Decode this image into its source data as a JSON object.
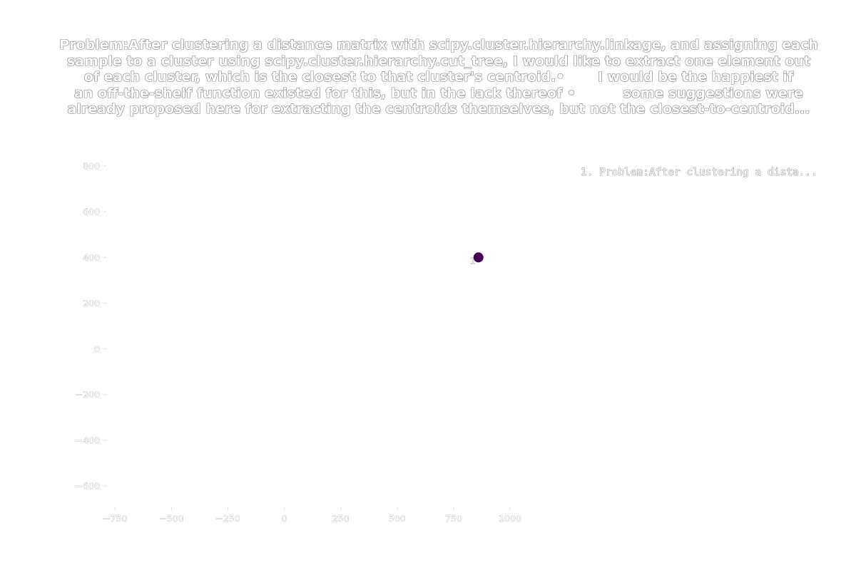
{
  "chart_data": {
    "type": "scatter",
    "title": "Problem:After clustering a distance matrix with scipy.cluster.hierarchy.linkage, and assigning each sample to a cluster using scipy.cluster.hierarchy.cut_tree, I would like to extract one element out of each cluster, which is the closest to that cluster's centroid.• I would be the happiest if an off-the-shelf function existed for this, but in the lack thereof • some suggestions were already proposed here for extracting the centroids themselves, but not the closest-to-centroid...",
    "title_lines": [
      "Problem:After clustering a distance matrix with scipy.cluster.hierarchy.linkage, and assigning each",
      "sample to a cluster using scipy.cluster.hierarchy.cut_tree, I would like to extract one element out",
      "of each cluster, which is the closest to that cluster's centroid.•       I would be the happiest if",
      "an off-the-shelf function existed for this, but in the lack thereof •          some suggestions were",
      "already proposed here for extracting the centroids themselves, but not the closest-to-centroid..."
    ],
    "xlabel": "",
    "ylabel": "",
    "xlim": [
      -820,
      1030
    ],
    "ylim": [
      -700,
      820
    ],
    "x_ticks": [
      -750,
      -500,
      -250,
      0,
      250,
      500,
      750,
      1000
    ],
    "x_tick_labels": [
      "−750",
      "−500",
      "−250",
      "0",
      "250",
      "500",
      "750",
      "1000"
    ],
    "y_ticks": [
      800,
      600,
      400,
      200,
      0,
      -200,
      -400,
      -600
    ],
    "y_tick_labels": [
      "800",
      "600",
      "400",
      "200",
      "0",
      "−200",
      "−400",
      "−600"
    ],
    "grid": false,
    "legend_placement": "top-right",
    "series": [
      {
        "name": "1. Problem:After clustering a dista...",
        "color": "#440154",
        "points": [
          {
            "x": 860,
            "y": 400,
            "label": "1"
          }
        ]
      }
    ]
  }
}
